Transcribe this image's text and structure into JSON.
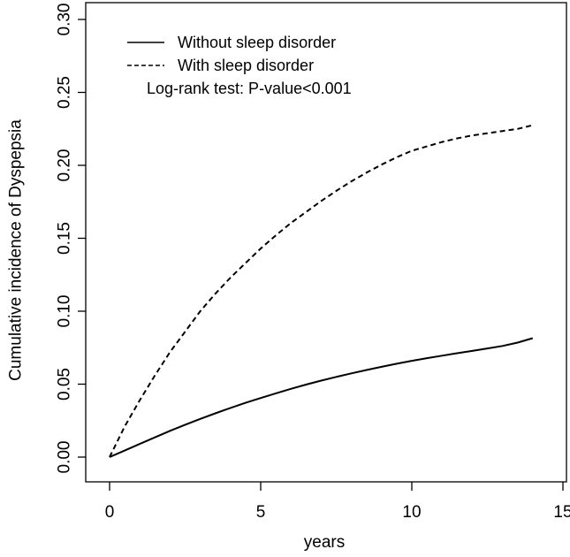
{
  "chart_data": {
    "type": "line",
    "title": "",
    "xlabel": "years",
    "ylabel": "Cumulative incidence of Dyspepsia",
    "xlim": [
      0,
      15
    ],
    "ylim": [
      0,
      0.3
    ],
    "x_ticks": [
      0,
      5,
      10,
      15
    ],
    "x_tick_labels": [
      "0",
      "5",
      "10",
      "15"
    ],
    "y_ticks": [
      0,
      0.05,
      0.1,
      0.15,
      0.2,
      0.25,
      0.3
    ],
    "y_tick_labels": [
      "0.00",
      "0.05",
      "0.10",
      "0.15",
      "0.20",
      "0.25",
      "0.30"
    ],
    "grid": false,
    "legend_position": "top-left",
    "annotation": "Log-rank test: P-value<0.001",
    "series": [
      {
        "name": "Without sleep disorder",
        "line_style": "solid",
        "x": [
          0,
          0.5,
          1,
          1.5,
          2,
          2.5,
          3,
          3.5,
          4,
          4.5,
          5,
          5.5,
          6,
          6.5,
          7,
          7.5,
          8,
          8.5,
          9,
          9.5,
          10,
          10.5,
          11,
          11.5,
          12,
          12.5,
          13,
          13.5,
          14
        ],
        "values": [
          0,
          0.0045,
          0.009,
          0.0135,
          0.018,
          0.0222,
          0.0262,
          0.03,
          0.0337,
          0.0372,
          0.0405,
          0.0437,
          0.0468,
          0.0497,
          0.0524,
          0.055,
          0.0574,
          0.0597,
          0.0619,
          0.064,
          0.066,
          0.0678,
          0.0695,
          0.0712,
          0.0728,
          0.0745,
          0.0762,
          0.0785,
          0.0815
        ]
      },
      {
        "name": "With sleep disorder",
        "line_style": "dashed",
        "x": [
          0,
          0.5,
          1,
          1.5,
          2,
          2.5,
          3,
          3.5,
          4,
          4.5,
          5,
          5.5,
          6,
          6.5,
          7,
          7.5,
          8,
          8.5,
          9,
          9.5,
          10,
          10.5,
          11,
          11.5,
          12,
          12.5,
          13,
          13.5,
          14
        ],
        "values": [
          0,
          0.021,
          0.039,
          0.056,
          0.072,
          0.086,
          0.1,
          0.112,
          0.123,
          0.133,
          0.143,
          0.152,
          0.1605,
          0.168,
          0.1755,
          0.1825,
          0.189,
          0.195,
          0.2005,
          0.2055,
          0.21,
          0.213,
          0.216,
          0.2185,
          0.2205,
          0.222,
          0.2235,
          0.225,
          0.2275
        ]
      }
    ]
  }
}
